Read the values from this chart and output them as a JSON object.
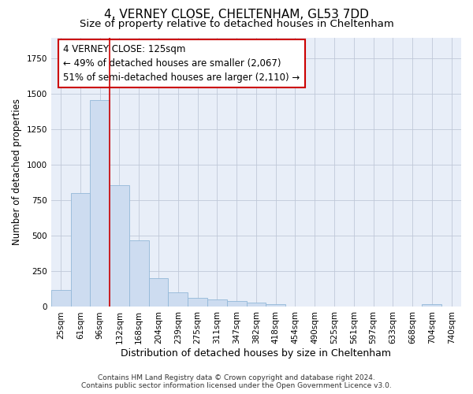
{
  "title1": "4, VERNEY CLOSE, CHELTENHAM, GL53 7DD",
  "title2": "Size of property relative to detached houses in Cheltenham",
  "xlabel": "Distribution of detached houses by size in Cheltenham",
  "ylabel": "Number of detached properties",
  "categories": [
    "25sqm",
    "61sqm",
    "96sqm",
    "132sqm",
    "168sqm",
    "204sqm",
    "239sqm",
    "275sqm",
    "311sqm",
    "347sqm",
    "382sqm",
    "418sqm",
    "454sqm",
    "490sqm",
    "525sqm",
    "561sqm",
    "597sqm",
    "633sqm",
    "668sqm",
    "704sqm",
    "740sqm"
  ],
  "values": [
    120,
    800,
    1460,
    860,
    470,
    200,
    100,
    65,
    50,
    40,
    30,
    20,
    0,
    0,
    0,
    0,
    0,
    0,
    0,
    20,
    0
  ],
  "bar_color": "#cddcf0",
  "bar_edge_color": "#93b8d8",
  "bg_axes_color": "#e8eef8",
  "background_color": "#ffffff",
  "grid_color": "#c0c8d8",
  "vline_pos": 2.5,
  "vline_color": "#cc0000",
  "annotation_line1": "4 VERNEY CLOSE: 125sqm",
  "annotation_line2": "← 49% of detached houses are smaller (2,067)",
  "annotation_line3": "51% of semi-detached houses are larger (2,110) →",
  "annotation_box_color": "#ffffff",
  "annotation_box_edge_color": "#cc0000",
  "footer1": "Contains HM Land Registry data © Crown copyright and database right 2024.",
  "footer2": "Contains public sector information licensed under the Open Government Licence v3.0.",
  "ylim_max": 1900,
  "title1_fontsize": 11,
  "title2_fontsize": 9.5,
  "xlabel_fontsize": 9,
  "ylabel_fontsize": 8.5,
  "tick_fontsize": 7.5,
  "annotation_fontsize": 8.5,
  "footer_fontsize": 6.5
}
